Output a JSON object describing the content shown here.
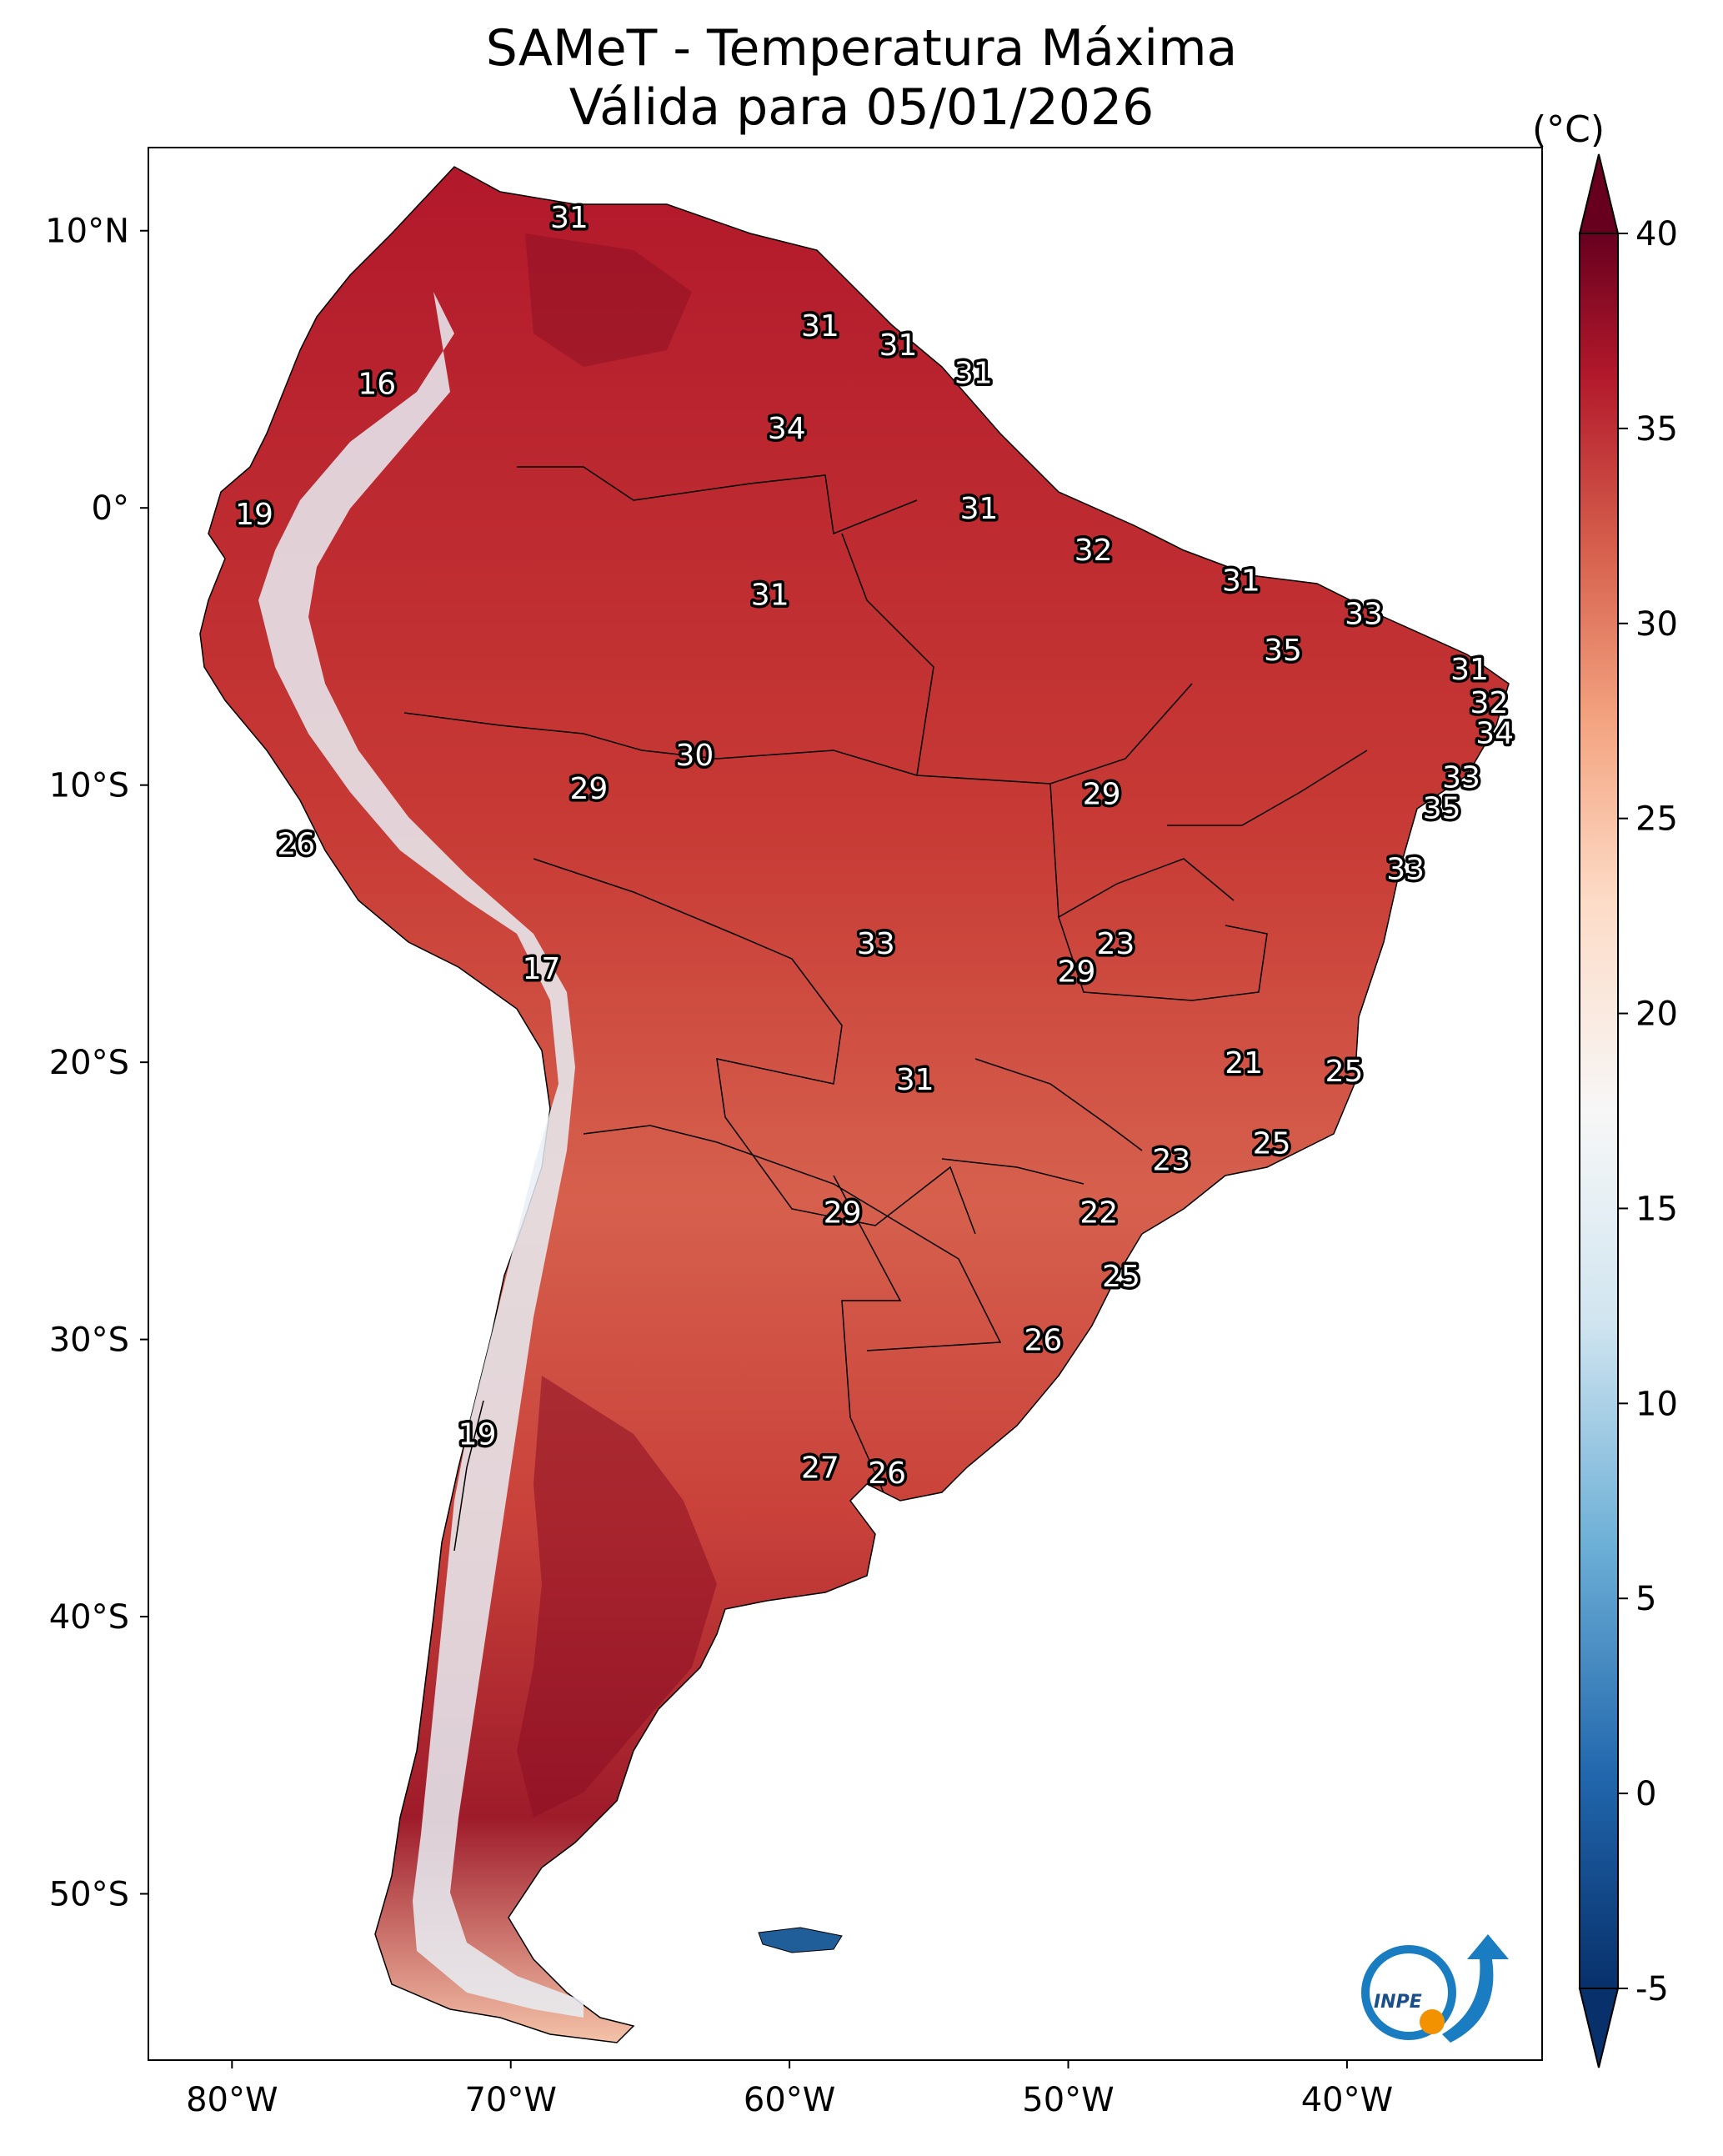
{
  "title": {
    "line1": "SAMeT - Temperatura Máxima",
    "line2": "Válida para 05/01/2026"
  },
  "colorbar": {
    "unit": "(°C)",
    "ticks": [
      "40",
      "35",
      "30",
      "25",
      "20",
      "15",
      "10",
      "5",
      "0",
      "-5"
    ],
    "range": [
      -5,
      40
    ],
    "colors": [
      "#08306b",
      "#2166ac",
      "#6baed6",
      "#d1e5f0",
      "#f7f7f7",
      "#fddbc7",
      "#f4a582",
      "#d6604d",
      "#b2182b",
      "#67001f"
    ]
  },
  "axes": {
    "longitude_labels": [
      "80°W",
      "70°W",
      "60°W",
      "50°W",
      "40°W"
    ],
    "latitude_labels": [
      "10°N",
      "0°",
      "10°S",
      "20°S",
      "30°S",
      "40°S",
      "50°S"
    ]
  },
  "map_data": {
    "region": "South America",
    "extent": {
      "lon": [
        -83,
        -33
      ],
      "lat": [
        -56,
        13
      ]
    },
    "temperature_labels": [
      {
        "value": "31",
        "lon": -67.9,
        "lat": 10.5
      },
      {
        "value": "31",
        "lon": -58.9,
        "lat": 6.6
      },
      {
        "value": "31",
        "lon": -56.1,
        "lat": 5.9
      },
      {
        "value": "31",
        "lon": -53.4,
        "lat": 4.9
      },
      {
        "value": "34",
        "lon": -60.1,
        "lat": 2.9
      },
      {
        "value": "16",
        "lon": -74.8,
        "lat": 4.5
      },
      {
        "value": "19",
        "lon": -79.2,
        "lat": -0.2
      },
      {
        "value": "31",
        "lon": -53.2,
        "lat": 0.0
      },
      {
        "value": "32",
        "lon": -49.1,
        "lat": -1.5
      },
      {
        "value": "31",
        "lon": -60.7,
        "lat": -3.1
      },
      {
        "value": "31",
        "lon": -43.8,
        "lat": -2.6
      },
      {
        "value": "33",
        "lon": -39.4,
        "lat": -3.8
      },
      {
        "value": "35",
        "lon": -42.3,
        "lat": -5.1
      },
      {
        "value": "31",
        "lon": -35.6,
        "lat": -5.8
      },
      {
        "value": "32",
        "lon": -34.9,
        "lat": -7.0
      },
      {
        "value": "34",
        "lon": -34.7,
        "lat": -8.1
      },
      {
        "value": "30",
        "lon": -63.4,
        "lat": -8.9
      },
      {
        "value": "29",
        "lon": -67.2,
        "lat": -10.1
      },
      {
        "value": "29",
        "lon": -48.8,
        "lat": -10.3
      },
      {
        "value": "33",
        "lon": -35.9,
        "lat": -9.7
      },
      {
        "value": "35",
        "lon": -36.6,
        "lat": -10.8
      },
      {
        "value": "26",
        "lon": -77.7,
        "lat": -12.1
      },
      {
        "value": "33",
        "lon": -37.9,
        "lat": -13.0
      },
      {
        "value": "33",
        "lon": -56.9,
        "lat": -15.7
      },
      {
        "value": "23",
        "lon": -48.3,
        "lat": -15.7
      },
      {
        "value": "29",
        "lon": -49.7,
        "lat": -16.7
      },
      {
        "value": "17",
        "lon": -68.9,
        "lat": -16.6
      },
      {
        "value": "21",
        "lon": -43.7,
        "lat": -20.0
      },
      {
        "value": "25",
        "lon": -40.1,
        "lat": -20.3
      },
      {
        "value": "31",
        "lon": -55.5,
        "lat": -20.6
      },
      {
        "value": "25",
        "lon": -42.7,
        "lat": -22.9
      },
      {
        "value": "23",
        "lon": -46.3,
        "lat": -23.5
      },
      {
        "value": "29",
        "lon": -58.1,
        "lat": -25.4
      },
      {
        "value": "22",
        "lon": -48.9,
        "lat": -25.4
      },
      {
        "value": "25",
        "lon": -48.1,
        "lat": -27.7
      },
      {
        "value": "26",
        "lon": -50.9,
        "lat": -30.0
      },
      {
        "value": "19",
        "lon": -71.2,
        "lat": -33.4
      },
      {
        "value": "27",
        "lon": -58.9,
        "lat": -34.6
      },
      {
        "value": "26",
        "lon": -56.5,
        "lat": -34.8
      }
    ]
  },
  "logo": {
    "text": "INPE"
  }
}
